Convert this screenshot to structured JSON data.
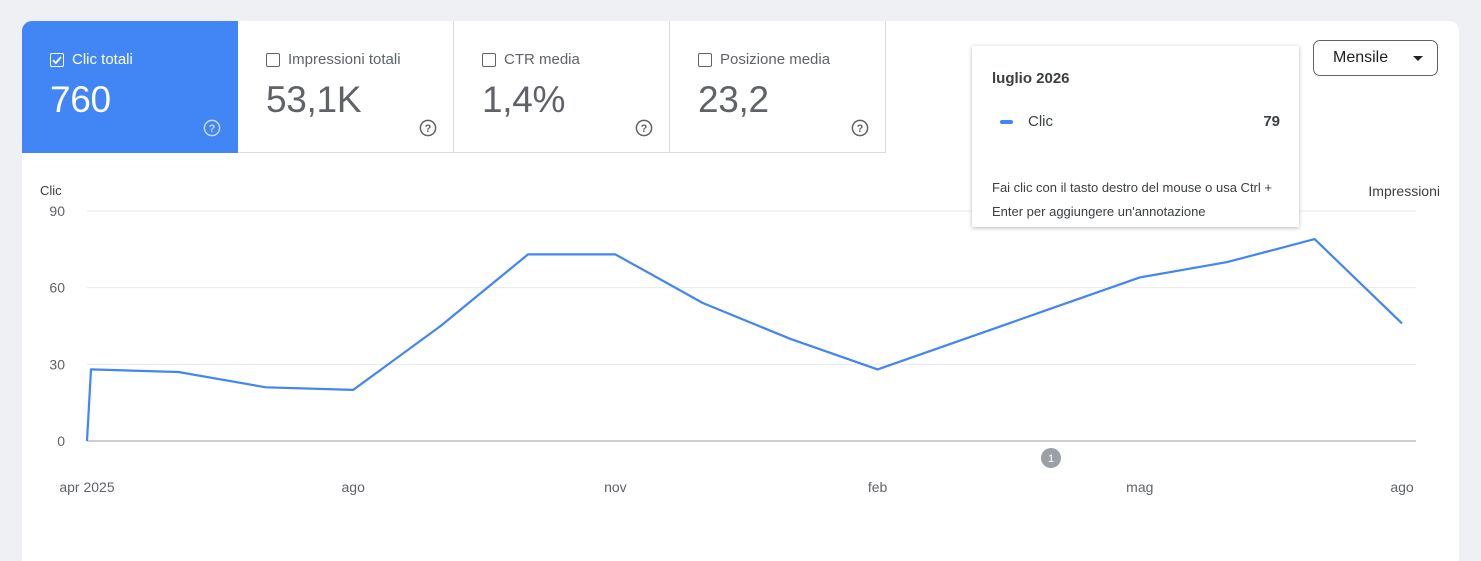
{
  "metrics": [
    {
      "label": "Clic totali",
      "value": "760",
      "checked": true
    },
    {
      "label": "Impressioni totali",
      "value": "53,1K",
      "checked": false
    },
    {
      "label": "CTR media",
      "value": "1,4%",
      "checked": false
    },
    {
      "label": "Posizione media",
      "value": "23,2",
      "checked": false
    }
  ],
  "period_select": {
    "selected": "Mensile"
  },
  "tooltip": {
    "title": "luglio 2026",
    "series_name": "Clic",
    "series_value": "79",
    "hint": "Fai clic con il tasto destro del mouse o usa Ctrl + Enter per aggiungere un'annotazione"
  },
  "annotation_badge": "1",
  "colors": {
    "accent": "#4285f4",
    "grid": "#e8eaed",
    "text": "#5f6368"
  },
  "chart_data": {
    "type": "line",
    "xlabel": "",
    "ylabel": "Clic",
    "y2label": "Impressioni",
    "ylim": [
      0,
      90
    ],
    "yticks": [
      0,
      30,
      60,
      90
    ],
    "x_tick_labels": [
      "apr 2025",
      "ago",
      "nov",
      "feb",
      "mag",
      "ago"
    ],
    "x": [
      "2025-04",
      "2025-05",
      "2025-06",
      "2025-07",
      "2025-08",
      "2025-09",
      "2025-10",
      "2025-11",
      "2025-12",
      "2026-01",
      "2026-02",
      "2026-03",
      "2026-04",
      "2026-05",
      "2026-06",
      "2026-07",
      "2026-08"
    ],
    "series": [
      {
        "name": "Clic",
        "color": "#4285f4",
        "values": [
          0,
          28,
          27,
          21,
          20,
          45,
          73,
          73,
          54,
          40,
          28,
          40,
          52,
          64,
          70,
          79,
          46
        ]
      }
    ],
    "grid": true
  }
}
